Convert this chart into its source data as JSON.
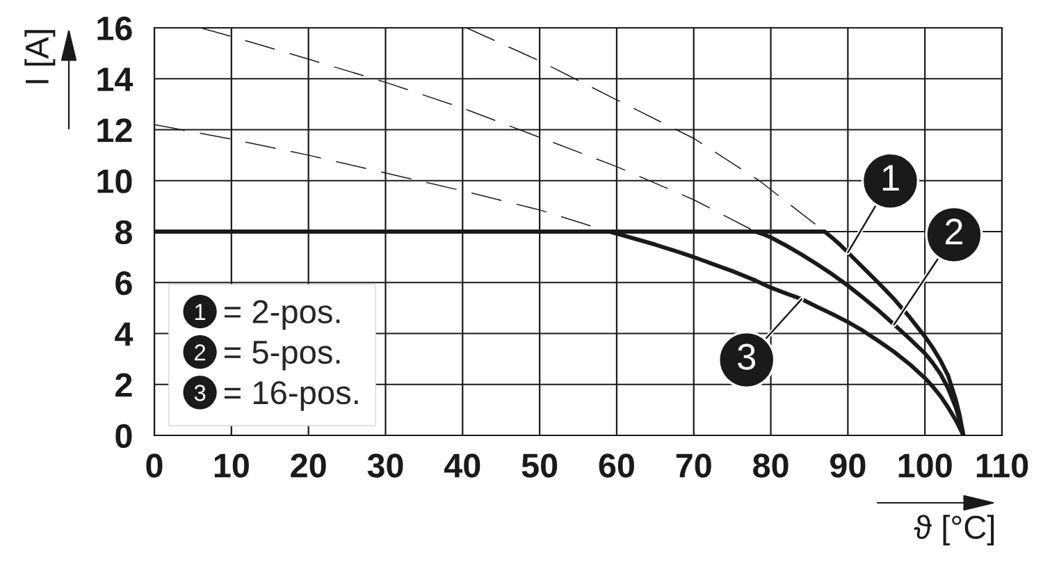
{
  "chart_data": {
    "type": "line",
    "xlabel": "ϑ [°C]",
    "ylabel": "I [A]",
    "xlim": [
      0,
      110
    ],
    "xticks": [
      0,
      10,
      20,
      30,
      40,
      50,
      60,
      70,
      80,
      90,
      100,
      110
    ],
    "ylim": [
      0,
      16
    ],
    "yticks": [
      0,
      2,
      4,
      6,
      8,
      10,
      12,
      14,
      16
    ],
    "grid": true,
    "legend": "bottom left",
    "series": [
      {
        "name": "1",
        "color": "#1a1a1a",
        "x": [
          0,
          87,
          88,
          89,
          90,
          92,
          94,
          96,
          98,
          100,
          101,
          102,
          103,
          104,
          104.5,
          105
        ],
        "values": [
          8,
          8,
          7.75,
          7.48,
          7.18,
          6.58,
          5.98,
          5.35,
          4.65,
          3.88,
          3.45,
          2.95,
          2.35,
          1.4,
          0.8,
          0
        ]
      },
      {
        "name": "2",
        "color": "#1a1a1a",
        "x": [
          78,
          79,
          80,
          82,
          84,
          86,
          88,
          90,
          92,
          94,
          96,
          98,
          100,
          101,
          102,
          103,
          104,
          104.5,
          105
        ],
        "values": [
          8,
          7.9,
          7.77,
          7.45,
          7.1,
          6.72,
          6.32,
          5.88,
          5.4,
          4.9,
          4.35,
          3.8,
          3.22,
          2.85,
          2.42,
          1.85,
          1.1,
          0.6,
          0
        ]
      },
      {
        "name": "3",
        "color": "#1a1a1a",
        "x": [
          59,
          60,
          62,
          65,
          68,
          70,
          72,
          75,
          78,
          80,
          82,
          84,
          86,
          88,
          90,
          92,
          94,
          96,
          98,
          100,
          101,
          102,
          103,
          104,
          104.5,
          105
        ],
        "values": [
          8,
          7.92,
          7.75,
          7.49,
          7.2,
          7.0,
          6.78,
          6.45,
          6.08,
          5.8,
          5.57,
          5.35,
          5.05,
          4.76,
          4.45,
          4.1,
          3.7,
          3.28,
          2.8,
          2.25,
          1.92,
          1.55,
          1.1,
          0.6,
          0.3,
          0
        ]
      },
      {
        "color": "#1a1a1a",
        "line_style": "dashed",
        "x": [
          40.5,
          50,
          60,
          70,
          78.5,
          87
        ],
        "values": [
          16,
          14.7,
          13.17,
          11.66,
          10,
          8
        ]
      },
      {
        "color": "#1a1a1a",
        "line_style": "dashed",
        "x": [
          6,
          10,
          20,
          30,
          40,
          50,
          60,
          70,
          78
        ],
        "values": [
          16,
          15.66,
          14.77,
          13.86,
          12.85,
          11.7,
          10.55,
          9.25,
          8
        ]
      },
      {
        "color": "#1a1a1a",
        "line_style": "dashed",
        "x": [
          0,
          10,
          20,
          30,
          40,
          50,
          59
        ],
        "values": [
          12.2,
          11.63,
          11.0,
          10.3,
          9.6,
          8.85,
          8
        ]
      }
    ],
    "annotations": [
      "= 2-pos.",
      "= 5-pos.",
      "= 16-pos."
    ]
  }
}
